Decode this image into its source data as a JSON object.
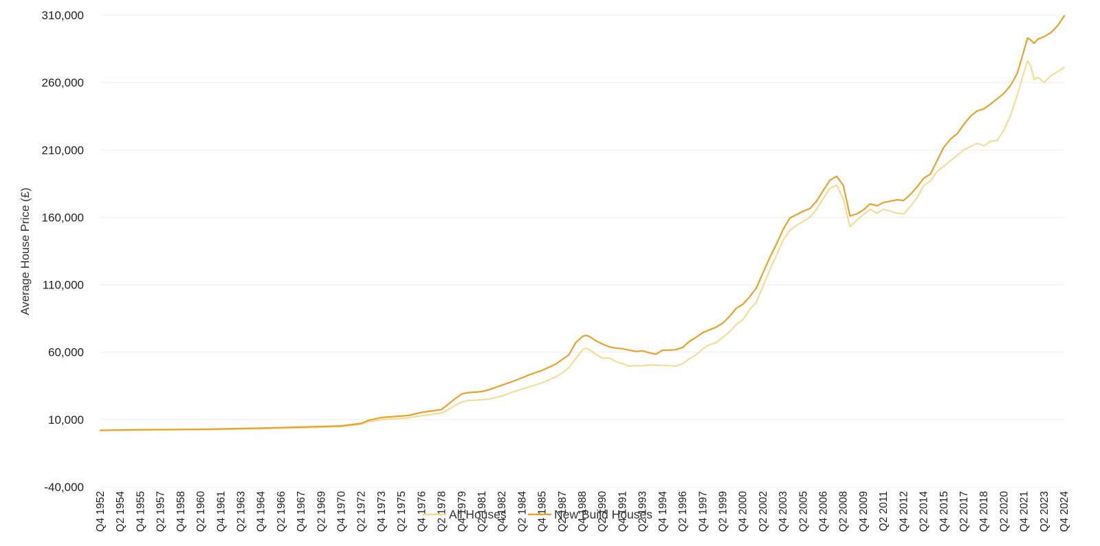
{
  "chart_data": {
    "type": "line",
    "title": "",
    "xlabel": "",
    "ylabel": "Average House Price (£)",
    "ylim": [
      -40000,
      310000
    ],
    "y_ticks": [
      "-40,000",
      "10,000",
      "60,000",
      "110,000",
      "160,000",
      "210,000",
      "260,000",
      "310,000"
    ],
    "y_tick_values": [
      -40000,
      10000,
      60000,
      110000,
      160000,
      210000,
      260000,
      310000
    ],
    "grid": "horizontal",
    "legend_position": "bottom-center",
    "x_tick_labels": [
      "Q4 1952",
      "Q2 1954",
      "Q4 1955",
      "Q2 1957",
      "Q4 1958",
      "Q2 1960",
      "Q4 1961",
      "Q2 1963",
      "Q4 1964",
      "Q2 1966",
      "Q4 1967",
      "Q2 1969",
      "Q4 1970",
      "Q2 1972",
      "Q4 1973",
      "Q2 1975",
      "Q4 1976",
      "Q2 1978",
      "Q4 1979",
      "Q2 1981",
      "Q4 1982",
      "Q2 1984",
      "Q4 1985",
      "Q2 1987",
      "Q4 1988",
      "Q2 1990",
      "Q4 1991",
      "Q2 1993",
      "Q4 1994",
      "Q2 1996",
      "Q4 1997",
      "Q2 1999",
      "Q4 2000",
      "Q2 2002",
      "Q4 2003",
      "Q2 2005",
      "Q4 2006",
      "Q2 2008",
      "Q4 2009",
      "Q2 2011",
      "Q4 2012",
      "Q2 2014",
      "Q4 2015",
      "Q2 2017",
      "Q4 2018",
      "Q2 2020",
      "Q4 2021",
      "Q2 2023",
      "Q4 2024"
    ],
    "x_range": [
      "Q4 1952",
      "Q4 2024"
    ],
    "series": [
      {
        "name": "All Houses",
        "color": "#f6d98a",
        "points": [
          [
            "Q4 1952",
            2000
          ],
          [
            "Q4 1955",
            2200
          ],
          [
            "Q4 1960",
            2500
          ],
          [
            "Q4 1964",
            3200
          ],
          [
            "Q4 1967",
            3800
          ],
          [
            "Q4 1970",
            4700
          ],
          [
            "Q2 1972",
            6500
          ],
          [
            "Q4 1972",
            8200
          ],
          [
            "Q4 1973",
            10000
          ],
          [
            "Q4 1975",
            11200
          ],
          [
            "Q4 1976",
            12800
          ],
          [
            "Q2 1978",
            14800
          ],
          [
            "Q4 1978",
            17500
          ],
          [
            "Q2 1979",
            20500
          ],
          [
            "Q4 1979",
            23000
          ],
          [
            "Q2 1980",
            24200
          ],
          [
            "Q4 1980",
            24300
          ],
          [
            "Q2 1981",
            24800
          ],
          [
            "Q4 1981",
            25000
          ],
          [
            "Q4 1982",
            27500
          ],
          [
            "Q4 1983",
            31000
          ],
          [
            "Q4 1984",
            34200
          ],
          [
            "Q4 1985",
            37300
          ],
          [
            "Q4 1986",
            41500
          ],
          [
            "Q2 1987",
            44500
          ],
          [
            "Q4 1987",
            48500
          ],
          [
            "Q2 1988",
            55000
          ],
          [
            "Q4 1988",
            61500
          ],
          [
            "Q1 1989",
            63000
          ],
          [
            "Q2 1989",
            62000
          ],
          [
            "Q4 1989",
            58500
          ],
          [
            "Q2 1990",
            55500
          ],
          [
            "Q4 1990",
            55800
          ],
          [
            "Q2 1991",
            53000
          ],
          [
            "Q4 1991",
            51500
          ],
          [
            "Q2 1992",
            49500
          ],
          [
            "Q4 1992",
            50000
          ],
          [
            "Q2 1993",
            49700
          ],
          [
            "Q4 1993",
            50500
          ],
          [
            "Q2 1994",
            50300
          ],
          [
            "Q4 1994",
            50000
          ],
          [
            "Q2 1995",
            50000
          ],
          [
            "Q4 1995",
            49600
          ],
          [
            "Q2 1996",
            51500
          ],
          [
            "Q4 1996",
            55000
          ],
          [
            "Q2 1997",
            58000
          ],
          [
            "Q4 1997",
            62500
          ],
          [
            "Q2 1998",
            65500
          ],
          [
            "Q4 1998",
            67000
          ],
          [
            "Q2 1999",
            71000
          ],
          [
            "Q4 1999",
            75000
          ],
          [
            "Q2 2000",
            80500
          ],
          [
            "Q4 2000",
            84000
          ],
          [
            "Q2 2001",
            91500
          ],
          [
            "Q4 2001",
            97000
          ],
          [
            "Q2 2002",
            109000
          ],
          [
            "Q4 2002",
            121000
          ],
          [
            "Q2 2003",
            132000
          ],
          [
            "Q4 2003",
            143000
          ],
          [
            "Q2 2004",
            150500
          ],
          [
            "Q4 2004",
            154000
          ],
          [
            "Q2 2005",
            157000
          ],
          [
            "Q4 2005",
            160000
          ],
          [
            "Q2 2006",
            166000
          ],
          [
            "Q4 2006",
            174000
          ],
          [
            "Q2 2007",
            181500
          ],
          [
            "Q4 2007",
            184000
          ],
          [
            "Q2 2008",
            173500
          ],
          [
            "Q4 2008",
            153000
          ],
          [
            "Q2 2009",
            158000
          ],
          [
            "Q4 2009",
            162000
          ],
          [
            "Q2 2010",
            166000
          ],
          [
            "Q4 2010",
            163000
          ],
          [
            "Q2 2011",
            166000
          ],
          [
            "Q4 2011",
            164500
          ],
          [
            "Q2 2012",
            163000
          ],
          [
            "Q4 2012",
            162500
          ],
          [
            "Q2 2013",
            168000
          ],
          [
            "Q4 2013",
            174500
          ],
          [
            "Q2 2014",
            183500
          ],
          [
            "Q4 2014",
            187000
          ],
          [
            "Q2 2015",
            194000
          ],
          [
            "Q4 2015",
            198000
          ],
          [
            "Q2 2016",
            202000
          ],
          [
            "Q4 2016",
            206000
          ],
          [
            "Q2 2017",
            210000
          ],
          [
            "Q4 2017",
            212500
          ],
          [
            "Q2 2018",
            215000
          ],
          [
            "Q4 2018",
            213000
          ],
          [
            "Q2 2019",
            216500
          ],
          [
            "Q4 2019",
            217000
          ],
          [
            "Q2 2020",
            225000
          ],
          [
            "Q4 2020",
            236000
          ],
          [
            "Q2 2021",
            251000
          ],
          [
            "Q4 2021",
            268000
          ],
          [
            "Q1 2022",
            276000
          ],
          [
            "Q2 2022",
            272000
          ],
          [
            "Q3 2022",
            262000
          ],
          [
            "Q4 2022",
            264000
          ],
          [
            "Q2 2023",
            260000
          ],
          [
            "Q4 2023",
            265000
          ],
          [
            "Q2 2024",
            268000
          ],
          [
            "Q4 2024",
            271000
          ]
        ]
      },
      {
        "name": "New Build Houses",
        "color": "#e9a127",
        "points": [
          [
            "Q4 1952",
            2000
          ],
          [
            "Q4 1955",
            2500
          ],
          [
            "Q4 1960",
            2800
          ],
          [
            "Q4 1964",
            3600
          ],
          [
            "Q4 1967",
            4400
          ],
          [
            "Q4 1970",
            5300
          ],
          [
            "Q2 1972",
            7200
          ],
          [
            "Q4 1972",
            9300
          ],
          [
            "Q4 1973",
            11500
          ],
          [
            "Q4 1975",
            13000
          ],
          [
            "Q4 1976",
            15300
          ],
          [
            "Q2 1978",
            17500
          ],
          [
            "Q4 1978",
            21500
          ],
          [
            "Q2 1979",
            25500
          ],
          [
            "Q4 1979",
            29000
          ],
          [
            "Q2 1980",
            30000
          ],
          [
            "Q4 1980",
            30300
          ],
          [
            "Q2 1981",
            30800
          ],
          [
            "Q4 1981",
            32000
          ],
          [
            "Q4 1982",
            35500
          ],
          [
            "Q4 1983",
            39000
          ],
          [
            "Q4 1984",
            43000
          ],
          [
            "Q4 1985",
            46500
          ],
          [
            "Q4 1986",
            51000
          ],
          [
            "Q2 1987",
            54500
          ],
          [
            "Q4 1987",
            58000
          ],
          [
            "Q2 1988",
            67000
          ],
          [
            "Q4 1988",
            71500
          ],
          [
            "Q1 1989",
            72500
          ],
          [
            "Q2 1989",
            71800
          ],
          [
            "Q4 1989",
            68500
          ],
          [
            "Q2 1990",
            66000
          ],
          [
            "Q4 1990",
            64000
          ],
          [
            "Q2 1991",
            63000
          ],
          [
            "Q4 1991",
            62500
          ],
          [
            "Q2 1992",
            61500
          ],
          [
            "Q4 1992",
            60500
          ],
          [
            "Q2 1993",
            61000
          ],
          [
            "Q4 1993",
            59500
          ],
          [
            "Q2 1994",
            58500
          ],
          [
            "Q4 1994",
            61500
          ],
          [
            "Q2 1995",
            61500
          ],
          [
            "Q4 1995",
            61800
          ],
          [
            "Q2 1996",
            63500
          ],
          [
            "Q4 1996",
            68000
          ],
          [
            "Q2 1997",
            71000
          ],
          [
            "Q4 1997",
            74500
          ],
          [
            "Q2 1998",
            76500
          ],
          [
            "Q4 1998",
            78500
          ],
          [
            "Q2 1999",
            81500
          ],
          [
            "Q4 1999",
            86500
          ],
          [
            "Q2 2000",
            92500
          ],
          [
            "Q4 2000",
            95500
          ],
          [
            "Q2 2001",
            101000
          ],
          [
            "Q4 2001",
            107500
          ],
          [
            "Q2 2002",
            119000
          ],
          [
            "Q4 2002",
            130000
          ],
          [
            "Q2 2003",
            140000
          ],
          [
            "Q4 2003",
            151000
          ],
          [
            "Q2 2004",
            159500
          ],
          [
            "Q4 2004",
            162000
          ],
          [
            "Q2 2005",
            164500
          ],
          [
            "Q4 2005",
            166500
          ],
          [
            "Q2 2006",
            172000
          ],
          [
            "Q4 2006",
            180000
          ],
          [
            "Q2 2007",
            187500
          ],
          [
            "Q4 2007",
            190500
          ],
          [
            "Q2 2008",
            183500
          ],
          [
            "Q4 2008",
            161000
          ],
          [
            "Q2 2009",
            162500
          ],
          [
            "Q4 2009",
            165500
          ],
          [
            "Q2 2010",
            170000
          ],
          [
            "Q4 2010",
            168500
          ],
          [
            "Q2 2011",
            171000
          ],
          [
            "Q4 2011",
            172000
          ],
          [
            "Q2 2012",
            173000
          ],
          [
            "Q4 2012",
            172500
          ],
          [
            "Q2 2013",
            177000
          ],
          [
            "Q4 2013",
            182500
          ],
          [
            "Q2 2014",
            189000
          ],
          [
            "Q4 2014",
            192000
          ],
          [
            "Q2 2015",
            202000
          ],
          [
            "Q4 2015",
            212000
          ],
          [
            "Q2 2016",
            218000
          ],
          [
            "Q4 2016",
            222000
          ],
          [
            "Q2 2017",
            229000
          ],
          [
            "Q4 2017",
            235000
          ],
          [
            "Q2 2018",
            239000
          ],
          [
            "Q4 2018",
            240500
          ],
          [
            "Q2 2019",
            244000
          ],
          [
            "Q4 2019",
            248000
          ],
          [
            "Q2 2020",
            252000
          ],
          [
            "Q4 2020",
            258000
          ],
          [
            "Q2 2021",
            267000
          ],
          [
            "Q4 2021",
            284000
          ],
          [
            "Q1 2022",
            293000
          ],
          [
            "Q2 2022",
            291500
          ],
          [
            "Q3 2022",
            289000
          ],
          [
            "Q4 2022",
            292000
          ],
          [
            "Q2 2023",
            294000
          ],
          [
            "Q4 2023",
            297000
          ],
          [
            "Q2 2024",
            302000
          ],
          [
            "Q4 2024",
            309500
          ]
        ]
      }
    ]
  }
}
